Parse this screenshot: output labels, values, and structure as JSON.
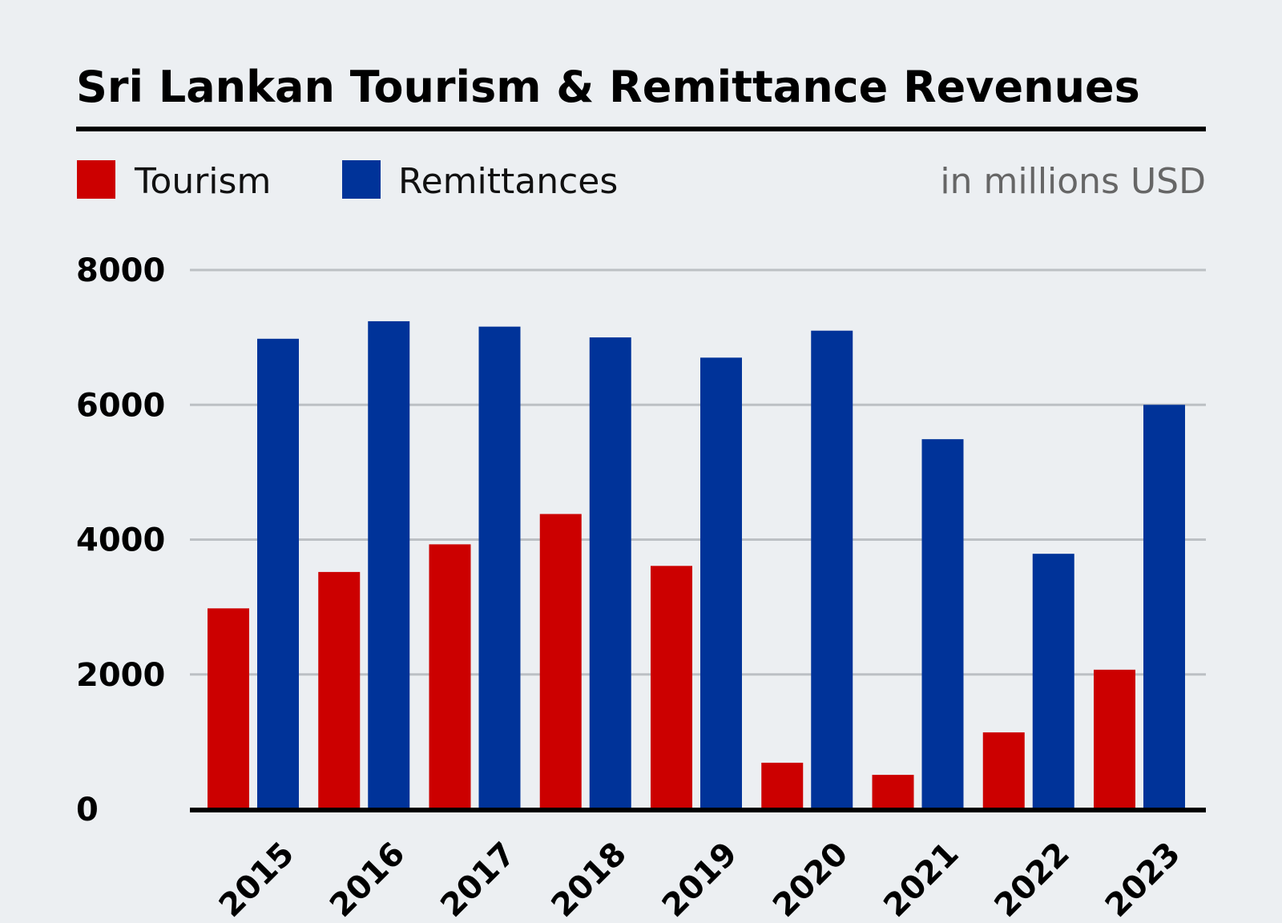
{
  "chart_data": {
    "type": "bar",
    "title": "Sri Lankan Tourism & Remittance Revenues",
    "unit_note": "in millions USD",
    "categories": [
      "2015",
      "2016",
      "2017",
      "2018",
      "2019",
      "2020",
      "2021",
      "2022",
      "2023"
    ],
    "series": [
      {
        "name": "Tourism",
        "color": "#cc0000",
        "values": [
          2980,
          3520,
          3930,
          4380,
          3610,
          690,
          510,
          1140,
          2070
        ]
      },
      {
        "name": "Remittances",
        "color": "#003399",
        "values": [
          6980,
          7240,
          7160,
          7000,
          6700,
          7100,
          5490,
          3790,
          6000
        ]
      }
    ],
    "ylim": [
      0,
      8000
    ],
    "yticks": [
      0,
      2000,
      4000,
      6000,
      8000
    ],
    "grid": true,
    "legend_position": "top-left",
    "xlabel": "",
    "ylabel": ""
  }
}
